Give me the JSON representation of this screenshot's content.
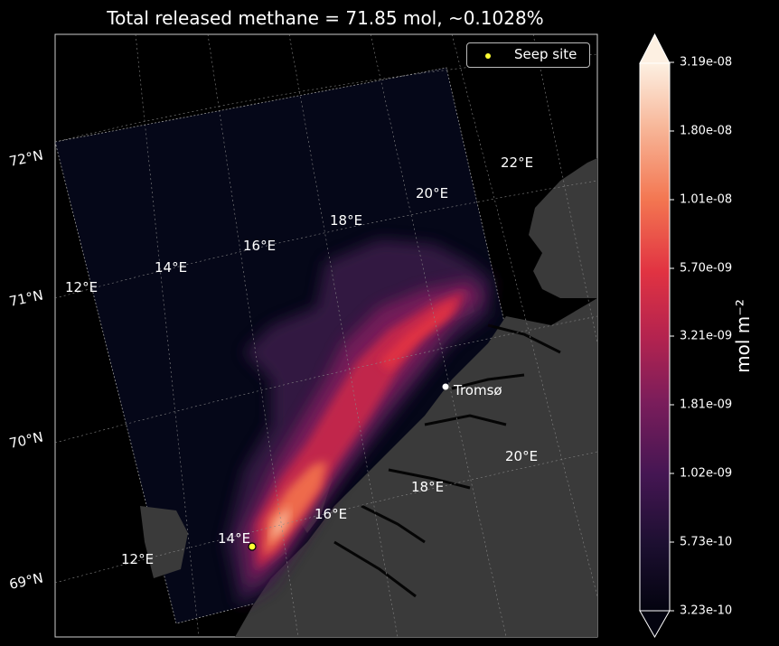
{
  "title": "Total released methane = 71.85 mol, ~0.1028%",
  "legend": {
    "label": "Seep site",
    "color": "#ffff33"
  },
  "colorbar": {
    "label": "mol m⁻²",
    "ticks": [
      "3.19e-08",
      "1.80e-08",
      "1.01e-08",
      "5.70e-09",
      "3.21e-09",
      "1.81e-09",
      "1.02e-09",
      "5.73e-10",
      "3.23e-10"
    ],
    "colors": [
      "#fdf0e2",
      "#f7b597",
      "#f37651",
      "#e13342",
      "#b4234f",
      "#7a1d5b",
      "#451653",
      "#1c0f30",
      "#03030f"
    ]
  },
  "latitude_labels": [
    "72°N",
    "71°N",
    "70°N",
    "69°N"
  ],
  "longitude_labels_outer": [
    "12°E",
    "12°E",
    "14°E",
    "16°E",
    "18°E",
    "20°E",
    "22°E"
  ],
  "longitude_labels_inner": [
    "14°E",
    "16°E",
    "18°E",
    "20°E"
  ],
  "city": {
    "name": "Tromsø"
  },
  "colors": {
    "land": "#3a3a3a",
    "ocean": "#03030f",
    "background": "#000000"
  }
}
